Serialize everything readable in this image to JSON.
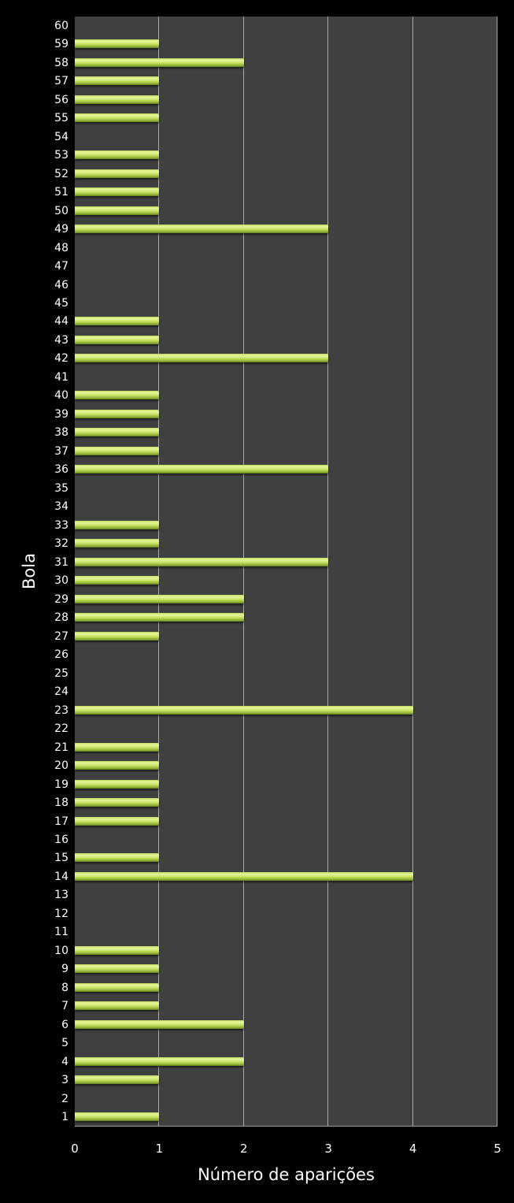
{
  "chart_data": {
    "type": "bar",
    "orientation": "horizontal",
    "title": "",
    "xlabel": "Número de aparições",
    "ylabel": "Bola",
    "xlim": [
      0,
      5
    ],
    "xticks": [
      "0",
      "1",
      "2",
      "3",
      "4",
      "5"
    ],
    "grid": true,
    "legend": null,
    "categories": [
      "1",
      "2",
      "3",
      "4",
      "5",
      "6",
      "7",
      "8",
      "9",
      "10",
      "11",
      "12",
      "13",
      "14",
      "15",
      "16",
      "17",
      "18",
      "19",
      "20",
      "21",
      "22",
      "23",
      "24",
      "25",
      "26",
      "27",
      "28",
      "29",
      "30",
      "31",
      "32",
      "33",
      "34",
      "35",
      "36",
      "37",
      "38",
      "39",
      "40",
      "41",
      "42",
      "43",
      "44",
      "45",
      "46",
      "47",
      "48",
      "49",
      "50",
      "51",
      "52",
      "53",
      "54",
      "55",
      "56",
      "57",
      "58",
      "59",
      "60"
    ],
    "values": [
      1,
      0,
      1,
      2,
      0,
      2,
      1,
      1,
      1,
      1,
      0,
      0,
      0,
      4,
      1,
      0,
      1,
      1,
      1,
      1,
      1,
      0,
      4,
      0,
      0,
      0,
      1,
      2,
      2,
      1,
      3,
      1,
      1,
      0,
      0,
      3,
      1,
      1,
      1,
      1,
      0,
      3,
      1,
      1,
      0,
      0,
      0,
      0,
      3,
      1,
      1,
      1,
      1,
      0,
      1,
      1,
      1,
      2,
      1,
      0
    ],
    "colors": {
      "bar": "#c6e060",
      "plot_bg": "#404040",
      "page_bg": "#000000",
      "grid": "#a8a8a8",
      "text": "#ffffff"
    }
  }
}
